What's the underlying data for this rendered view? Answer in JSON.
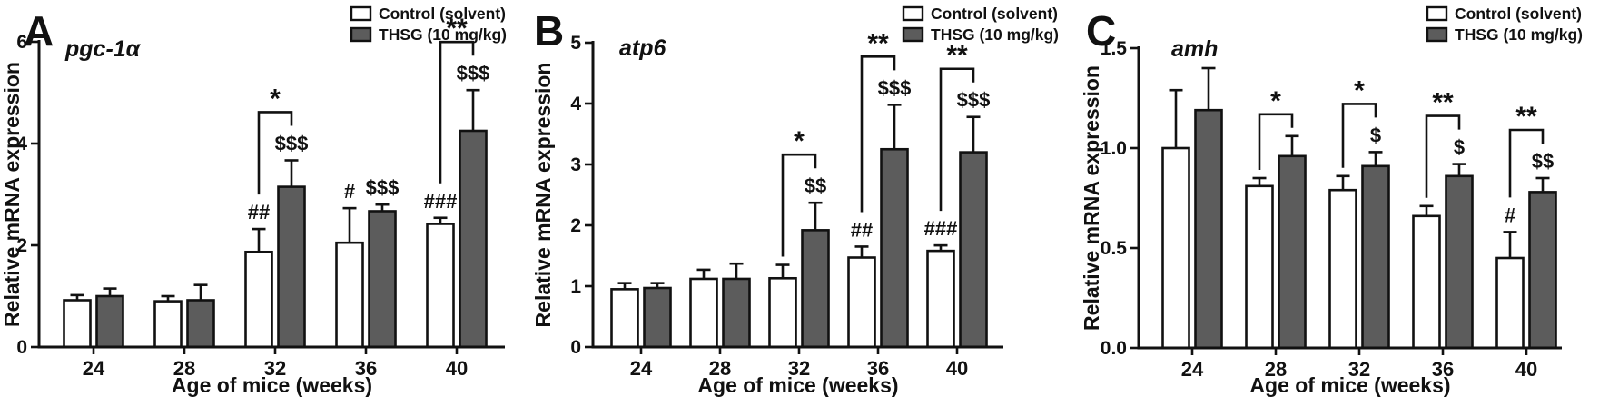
{
  "figure": {
    "xlabel": "Age of mice (weeks)",
    "ylabel": "Relative mRNA expression",
    "legend": {
      "items": [
        {
          "label": "Control (solvent)",
          "fill": "#ffffff"
        },
        {
          "label": "THSG (10 mg/kg)",
          "fill": "#5c5c5c"
        }
      ]
    },
    "colors": {
      "axis": "#111111",
      "control_fill": "#ffffff",
      "thsg_fill": "#5c5c5c"
    }
  },
  "chart_data": [
    {
      "type": "bar",
      "panel_letter": "A",
      "gene_title": "pgc-1α",
      "xlabel": "Age of mice (weeks)",
      "ylabel": "Relative mRNA expression",
      "categories": [
        "24",
        "28",
        "32",
        "36",
        "40"
      ],
      "ylim": [
        0,
        6
      ],
      "yticks": [
        0,
        2,
        4,
        6
      ],
      "ytick_labels": [
        "0",
        "2",
        "4",
        "6"
      ],
      "series": [
        {
          "name": "Control (solvent)",
          "fill": "#ffffff",
          "values": [
            0.92,
            0.9,
            1.87,
            2.05,
            2.42
          ],
          "errors": [
            0.1,
            0.1,
            0.45,
            0.68,
            0.12
          ],
          "annotations": [
            "",
            "",
            "##",
            "#",
            "###"
          ]
        },
        {
          "name": "THSG (10 mg/kg)",
          "fill": "#5c5c5c",
          "values": [
            1.0,
            0.92,
            3.15,
            2.67,
            4.25
          ],
          "errors": [
            0.15,
            0.3,
            0.52,
            0.13,
            0.8
          ],
          "annotations": [
            "",
            "",
            "$$$",
            "$$$",
            "$$$"
          ]
        }
      ],
      "brackets": [
        {
          "category_index": 2,
          "label": "*"
        },
        {
          "category_index": 4,
          "label": "**"
        }
      ]
    },
    {
      "type": "bar",
      "panel_letter": "B",
      "gene_title": "atp6",
      "xlabel": "Age of mice (weeks)",
      "ylabel": "Relative mRNA expression",
      "categories": [
        "24",
        "28",
        "32",
        "36",
        "40"
      ],
      "ylim": [
        0,
        5
      ],
      "yticks": [
        0,
        1,
        2,
        3,
        4,
        5
      ],
      "ytick_labels": [
        "0",
        "1",
        "2",
        "3",
        "4",
        "5"
      ],
      "series": [
        {
          "name": "Control (solvent)",
          "fill": "#ffffff",
          "values": [
            0.95,
            1.12,
            1.13,
            1.47,
            1.58
          ],
          "errors": [
            0.1,
            0.15,
            0.22,
            0.18,
            0.09
          ],
          "annotations": [
            "",
            "",
            "",
            "##",
            "###"
          ]
        },
        {
          "name": "THSG (10 mg/kg)",
          "fill": "#5c5c5c",
          "values": [
            0.97,
            1.12,
            1.92,
            3.25,
            3.2
          ],
          "errors": [
            0.08,
            0.25,
            0.45,
            0.73,
            0.58
          ],
          "annotations": [
            "",
            "",
            "$$",
            "$$$",
            "$$$"
          ]
        }
      ],
      "brackets": [
        {
          "category_index": 2,
          "label": "*"
        },
        {
          "category_index": 3,
          "label": "**"
        },
        {
          "category_index": 4,
          "label": "**"
        }
      ]
    },
    {
      "type": "bar",
      "panel_letter": "C",
      "gene_title": "amh",
      "xlabel": "Age of mice (weeks)",
      "ylabel": "Relative mRNA expression",
      "categories": [
        "24",
        "28",
        "32",
        "36",
        "40"
      ],
      "ylim": [
        0,
        1.5
      ],
      "yticks": [
        0,
        0.5,
        1.0,
        1.5
      ],
      "ytick_labels": [
        "0.0",
        "0.5",
        "1.0",
        "1.5"
      ],
      "series": [
        {
          "name": "Control (solvent)",
          "fill": "#ffffff",
          "values": [
            1.0,
            0.81,
            0.79,
            0.66,
            0.45
          ],
          "errors": [
            0.29,
            0.04,
            0.07,
            0.05,
            0.13
          ],
          "annotations": [
            "",
            "",
            "",
            "",
            "#"
          ]
        },
        {
          "name": "THSG (10 mg/kg)",
          "fill": "#5c5c5c",
          "values": [
            1.19,
            0.96,
            0.91,
            0.86,
            0.78
          ],
          "errors": [
            0.21,
            0.1,
            0.07,
            0.06,
            0.07
          ],
          "annotations": [
            "",
            "",
            "$",
            "$",
            "$$"
          ]
        }
      ],
      "brackets": [
        {
          "category_index": 1,
          "label": "*"
        },
        {
          "category_index": 2,
          "label": "*"
        },
        {
          "category_index": 3,
          "label": "**"
        },
        {
          "category_index": 4,
          "label": "**"
        }
      ]
    }
  ]
}
